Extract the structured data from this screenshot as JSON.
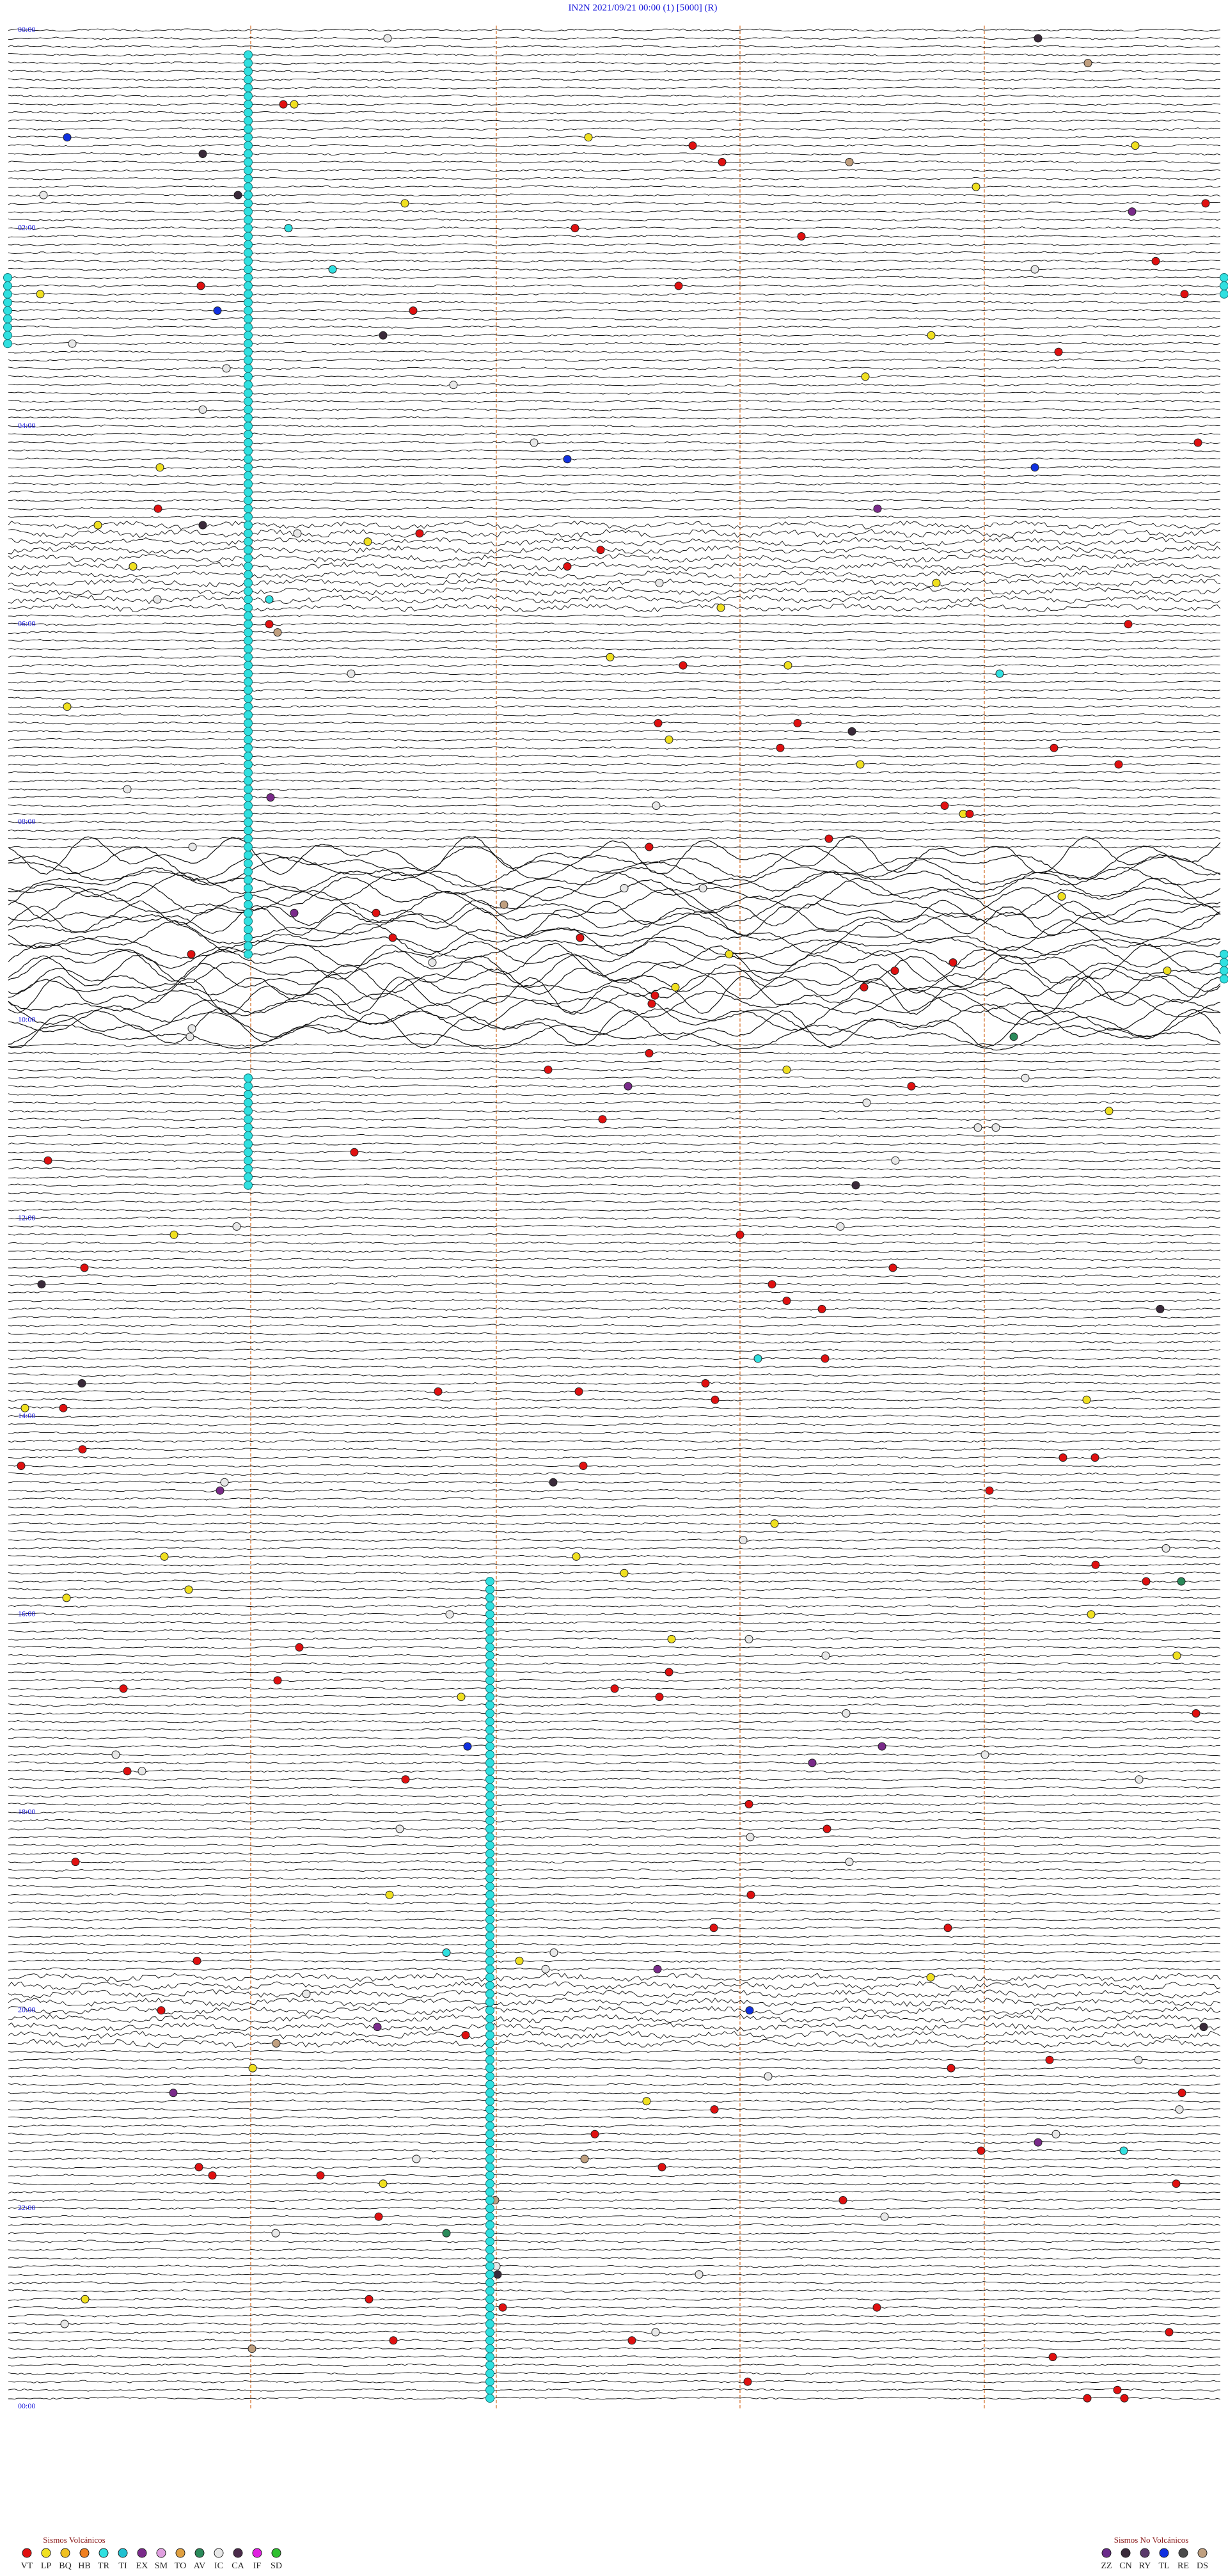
{
  "header": {
    "title": "IN2N    2021/09/21 00:00    (1)    [5000]    (R)"
  },
  "hour_labels": [
    "00:00",
    "02:00",
    "04:00",
    "06:00",
    "08:00",
    "10:00",
    "12:00",
    "14:00",
    "16:00",
    "18:00",
    "20:00",
    "22:00",
    "00:00"
  ],
  "legend": {
    "volcanic": {
      "title": "Sismos Volcánicos",
      "items": [
        {
          "code": "VT",
          "color": "#e01010"
        },
        {
          "code": "LP",
          "color": "#f0e020"
        },
        {
          "code": "BQ",
          "color": "#f0c020"
        },
        {
          "code": "HB",
          "color": "#f08020"
        },
        {
          "code": "TR",
          "color": "#30e0e0"
        },
        {
          "code": "TI",
          "color": "#20c0d0"
        },
        {
          "code": "EX",
          "color": "#7a2a8a"
        },
        {
          "code": "SM",
          "color": "#e0a0e0"
        },
        {
          "code": "TO",
          "color": "#e0a040"
        },
        {
          "code": "AV",
          "color": "#2a8a5a"
        },
        {
          "code": "IC",
          "color": "#e8e8e8"
        },
        {
          "code": "CA",
          "color": "#4a2a4a"
        },
        {
          "code": "IF",
          "color": "#e020e0"
        },
        {
          "code": "SD",
          "color": "#30c030"
        }
      ]
    },
    "non_volcanic": {
      "title": "Sismos No Volcánicos",
      "items": [
        {
          "code": "ZZ",
          "color": "#6a2a8a"
        },
        {
          "code": "CN",
          "color": "#3a2a3a"
        },
        {
          "code": "RY",
          "color": "#5a3a6a"
        },
        {
          "code": "TL",
          "color": "#1030e0"
        },
        {
          "code": "RE",
          "color": "#4a4a4a"
        },
        {
          "code": "DS",
          "color": "#c0a080"
        }
      ]
    }
  }
}
